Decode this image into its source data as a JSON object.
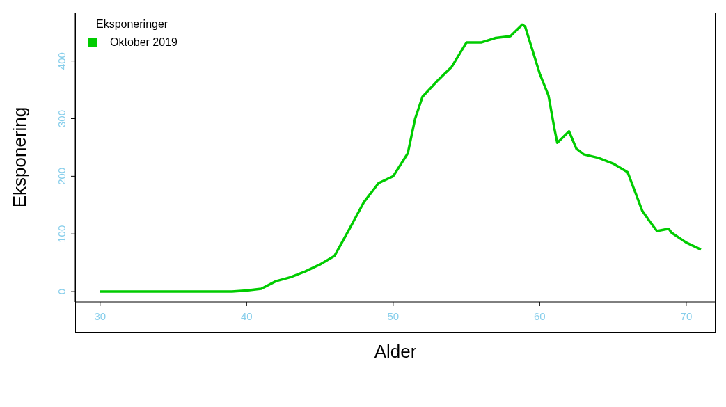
{
  "chart_data": {
    "type": "line",
    "xlabel": "Alder",
    "ylabel": "Eksponering",
    "legend_title": "Eksponeringer",
    "legend": "top left",
    "marker": "none",
    "line_style": "solid",
    "x": [
      30,
      31,
      32,
      33,
      34,
      35,
      36,
      37,
      38,
      39,
      40,
      41,
      42,
      43,
      44,
      45,
      46,
      47,
      48,
      49,
      50,
      51,
      51.5,
      52,
      53,
      54,
      55,
      56,
      57,
      58,
      58.8,
      59,
      60,
      60.6,
      61,
      61.2,
      62,
      62.5,
      63,
      64,
      65,
      66,
      67,
      67.5,
      68,
      68.8,
      69,
      70,
      71
    ],
    "series": [
      {
        "name": "Oktober 2019",
        "color": "#00cc00",
        "values": [
          0,
          0,
          0,
          0,
          0,
          0,
          0,
          0,
          0,
          0,
          2,
          5,
          18,
          25,
          35,
          47,
          62,
          108,
          155,
          188,
          200,
          240,
          300,
          338,
          365,
          390,
          432,
          432,
          440,
          443,
          463,
          460,
          378,
          340,
          283,
          258,
          278,
          248,
          238,
          232,
          222,
          207,
          140,
          122,
          105,
          109,
          102,
          85,
          73
        ]
      }
    ],
    "xlim": [
      28.3,
      72
    ],
    "xticks": [
      30,
      40,
      50,
      60,
      70
    ],
    "ylim": [
      -18,
      484
    ],
    "yticks": [
      0,
      100,
      200,
      300,
      400
    ]
  }
}
